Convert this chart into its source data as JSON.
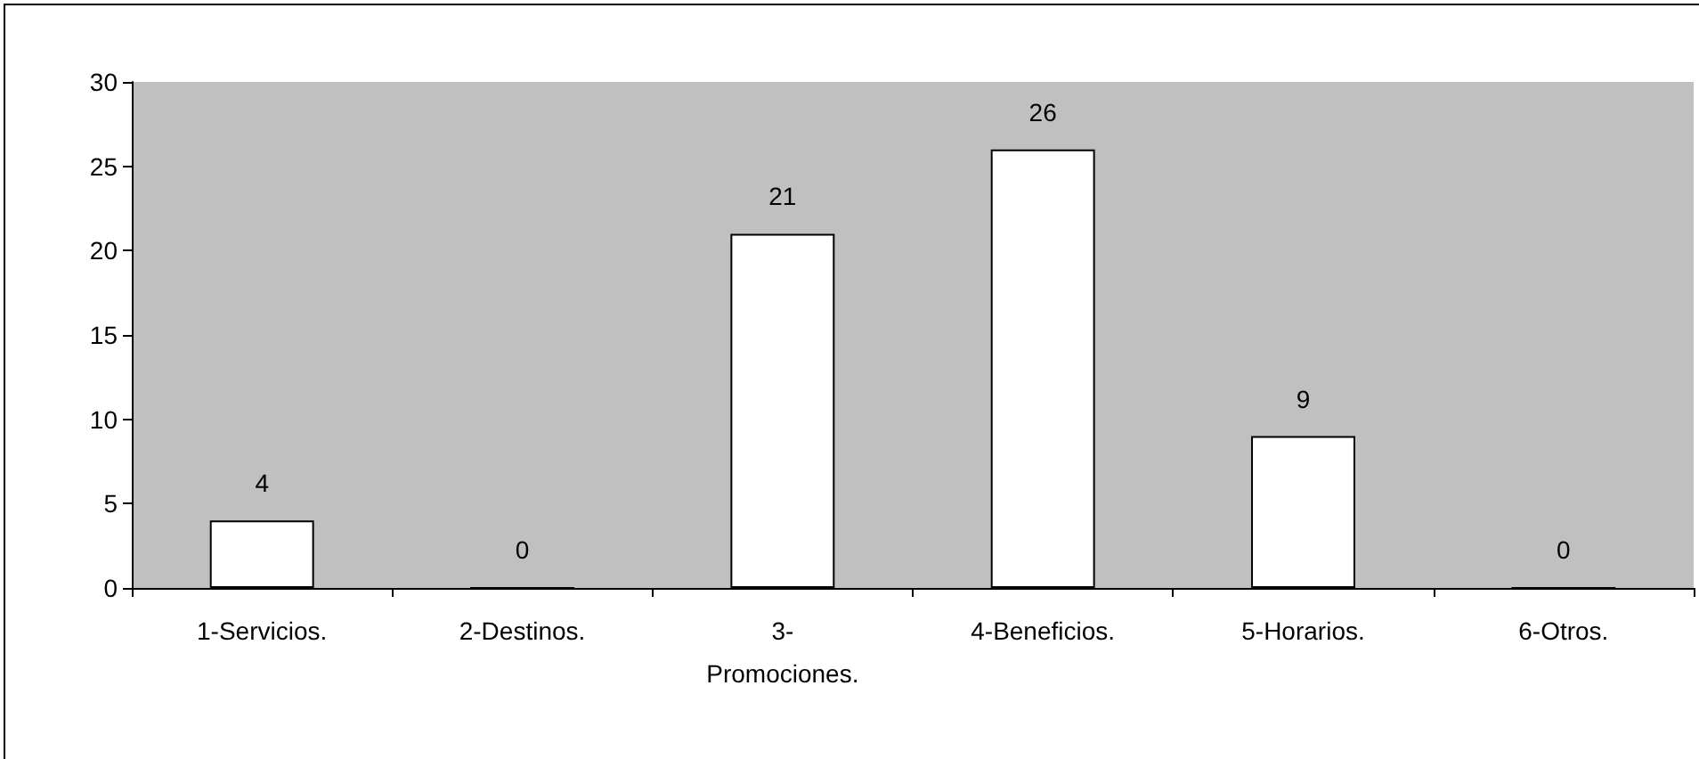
{
  "chart_data": {
    "type": "bar",
    "categories": [
      "1-Servicios.",
      "2-Destinos.",
      "3-Promociones.",
      "4-Beneficios.",
      "5-Horarios.",
      "6-Otros."
    ],
    "values": [
      4,
      0,
      21,
      26,
      9,
      0
    ],
    "color": "#ffffff",
    "ylim": [
      0,
      30
    ],
    "yticks": [
      0,
      5,
      10,
      15,
      20,
      25,
      30
    ],
    "grid": false,
    "data_labels": true
  }
}
